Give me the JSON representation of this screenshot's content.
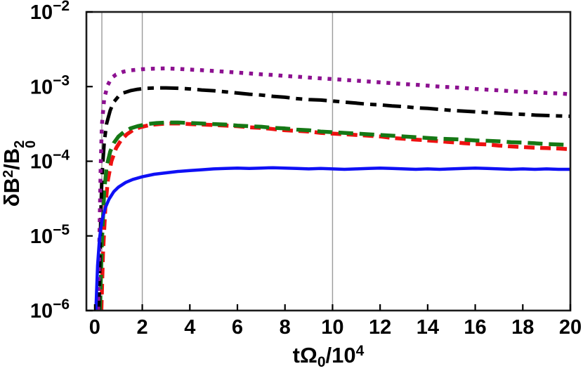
{
  "figure": {
    "background": "#ffffff",
    "axis_box_color": "#1c1c1c",
    "grid_color": "#9b9b9b",
    "tick_color": "#000000",
    "text_color": "#000000"
  },
  "labels": {
    "xlabel": {
      "main": "tΩ",
      "sub": "0",
      "mid": "/10",
      "sup": "4"
    },
    "ylabel": {
      "lead": "δB",
      "lead_sup": "2",
      "slash": "/",
      "base": "B",
      "stack_sup": "2",
      "stack_sub": "0"
    }
  },
  "chart_data": {
    "type": "line",
    "title": "",
    "xlabel": "tΩ0/10^4",
    "ylabel": "δB^2/B0^2",
    "x_axis_scale": "linear",
    "y_axis_scale": "log",
    "xlim": [
      -0.35,
      20
    ],
    "ylim": [
      1e-06,
      0.01
    ],
    "x_ticks": [
      0,
      2,
      4,
      6,
      8,
      10,
      12,
      14,
      16,
      18,
      20
    ],
    "y_ticks": [
      {
        "value": 0.01,
        "base": "10",
        "exp": "−2"
      },
      {
        "value": 0.001,
        "base": "10",
        "exp": "−3"
      },
      {
        "value": 0.0001,
        "base": "10",
        "exp": "−4"
      },
      {
        "value": 1e-05,
        "base": "10",
        "exp": "−5"
      },
      {
        "value": 1e-06,
        "base": "10",
        "exp": "−6"
      }
    ],
    "grid_x_values": [
      0.3,
      2,
      10
    ],
    "legend_position": "none",
    "series": [
      {
        "name": "red-dashed",
        "color": "#ee1111",
        "line_style": "dashed",
        "dash": "15 8",
        "stroke_width": 5.5,
        "points": [
          [
            0.28,
            1e-06
          ],
          [
            0.35,
            6e-06
          ],
          [
            0.45,
            2.5e-05
          ],
          [
            0.55,
            5.5e-05
          ],
          [
            0.7,
            0.0001
          ],
          [
            0.9,
            0.00015
          ],
          [
            1.1,
            0.00019
          ],
          [
            1.35,
            0.00023
          ],
          [
            1.6,
            0.00026
          ],
          [
            1.9,
            0.000285
          ],
          [
            2.3,
            0.000305
          ],
          [
            2.7,
            0.000315
          ],
          [
            3.1,
            0.00032
          ],
          [
            3.6,
            0.00032
          ],
          [
            4,
            0.000315
          ],
          [
            4.5,
            0.00031
          ],
          [
            5,
            0.000305
          ],
          [
            5.5,
            0.0003
          ],
          [
            6,
            0.000295
          ],
          [
            6.5,
            0.000285
          ],
          [
            7,
            0.00028
          ],
          [
            7.5,
            0.00027
          ],
          [
            8,
            0.00026
          ],
          [
            8.5,
            0.000255
          ],
          [
            9,
            0.00025
          ],
          [
            9.5,
            0.00024
          ],
          [
            10,
            0.000235
          ],
          [
            10.5,
            0.00023
          ],
          [
            11,
            0.000225
          ],
          [
            11.5,
            0.00022
          ],
          [
            12,
            0.000215
          ],
          [
            12.5,
            0.000205
          ],
          [
            13,
            0.0002
          ],
          [
            13.5,
            0.000195
          ],
          [
            14,
            0.00019
          ],
          [
            14.5,
            0.000185
          ],
          [
            15,
            0.00018
          ],
          [
            15.5,
            0.000175
          ],
          [
            16,
            0.00017
          ],
          [
            16.5,
            0.000168
          ],
          [
            17,
            0.000162
          ],
          [
            17.5,
            0.000158
          ],
          [
            18,
            0.000155
          ],
          [
            18.5,
            0.000152
          ],
          [
            19,
            0.00015
          ],
          [
            19.5,
            0.000148
          ],
          [
            20,
            0.000145
          ]
        ]
      },
      {
        "name": "green-long-dashed",
        "color": "#157815",
        "line_style": "long-dashed",
        "dash": "21 9",
        "stroke_width": 5.5,
        "points": [
          [
            0.22,
            1e-06
          ],
          [
            0.3,
            8e-06
          ],
          [
            0.4,
            4e-05
          ],
          [
            0.5,
            8.5e-05
          ],
          [
            0.65,
            0.000135
          ],
          [
            0.8,
            0.000175
          ],
          [
            1.0,
            0.000215
          ],
          [
            1.25,
            0.00025
          ],
          [
            1.5,
            0.000275
          ],
          [
            1.8,
            0.000295
          ],
          [
            2.2,
            0.000315
          ],
          [
            2.6,
            0.000325
          ],
          [
            3.0,
            0.00033
          ],
          [
            3.5,
            0.00033
          ],
          [
            4,
            0.000325
          ],
          [
            4.5,
            0.00032
          ],
          [
            5,
            0.000315
          ],
          [
            5.5,
            0.00031
          ],
          [
            6,
            0.0003
          ],
          [
            6.5,
            0.000295
          ],
          [
            7,
            0.00029
          ],
          [
            7.5,
            0.00028
          ],
          [
            8,
            0.000275
          ],
          [
            8.5,
            0.000265
          ],
          [
            9,
            0.00026
          ],
          [
            9.5,
            0.00025
          ],
          [
            10,
            0.000245
          ],
          [
            10.5,
            0.00024
          ],
          [
            11,
            0.000235
          ],
          [
            11.5,
            0.00023
          ],
          [
            12,
            0.000225
          ],
          [
            12.5,
            0.00022
          ],
          [
            13,
            0.000215
          ],
          [
            13.5,
            0.00021
          ],
          [
            14,
            0.000205
          ],
          [
            14.5,
            0.0002
          ],
          [
            15,
            0.000198
          ],
          [
            15.5,
            0.000195
          ],
          [
            16,
            0.00019
          ],
          [
            16.5,
            0.000188
          ],
          [
            17,
            0.000185
          ],
          [
            17.5,
            0.00018
          ],
          [
            18,
            0.000178
          ],
          [
            18.5,
            0.000174
          ],
          [
            19,
            0.00017
          ],
          [
            19.5,
            0.000168
          ],
          [
            20,
            0.000165
          ]
        ]
      },
      {
        "name": "black-dash-dot",
        "color": "#000000",
        "line_style": "dash-dot",
        "dash": "26 9 9 9",
        "stroke_width": 5,
        "points": [
          [
            0.18,
            1e-06
          ],
          [
            0.25,
            1.5e-05
          ],
          [
            0.3,
            6e-05
          ],
          [
            0.4,
            0.00018
          ],
          [
            0.5,
            0.00032
          ],
          [
            0.65,
            0.00048
          ],
          [
            0.8,
            0.00062
          ],
          [
            1.0,
            0.00074
          ],
          [
            1.2,
            0.00082
          ],
          [
            1.5,
            0.00088
          ],
          [
            1.8,
            0.00092
          ],
          [
            2.2,
            0.00095
          ],
          [
            2.6,
            0.00096
          ],
          [
            3.0,
            0.00096
          ],
          [
            3.5,
            0.00095
          ],
          [
            4,
            0.00093
          ],
          [
            4.5,
            0.0009
          ],
          [
            5,
            0.00088
          ],
          [
            5.5,
            0.00085
          ],
          [
            6,
            0.00082
          ],
          [
            6.5,
            0.00079
          ],
          [
            7,
            0.00077
          ],
          [
            7.5,
            0.00074
          ],
          [
            8,
            0.00072
          ],
          [
            8.5,
            0.00069
          ],
          [
            9,
            0.00067
          ],
          [
            9.5,
            0.00066
          ],
          [
            10,
            0.00064
          ],
          [
            10.5,
            0.00062
          ],
          [
            11,
            0.0006
          ],
          [
            11.5,
            0.00058
          ],
          [
            12,
            0.00057
          ],
          [
            12.5,
            0.00055
          ],
          [
            13,
            0.00054
          ],
          [
            13.5,
            0.00052
          ],
          [
            14,
            0.00051
          ],
          [
            14.5,
            0.000495
          ],
          [
            15,
            0.00048
          ],
          [
            15.5,
            0.00047
          ],
          [
            16,
            0.00046
          ],
          [
            16.5,
            0.00045
          ],
          [
            17,
            0.00044
          ],
          [
            17.5,
            0.00043
          ],
          [
            18,
            0.000425
          ],
          [
            18.5,
            0.000415
          ],
          [
            19,
            0.00041
          ],
          [
            19.5,
            0.000405
          ],
          [
            20,
            0.0004
          ]
        ]
      },
      {
        "name": "purple-dotted",
        "color": "#8c1090",
        "line_style": "dotted",
        "dash": "5.5 8.5",
        "stroke_width": 5.5,
        "points": [
          [
            0.15,
            1e-06
          ],
          [
            0.2,
            1e-05
          ],
          [
            0.25,
            8e-05
          ],
          [
            0.3,
            0.0003
          ],
          [
            0.4,
            0.0007
          ],
          [
            0.55,
            0.00105
          ],
          [
            0.7,
            0.0013
          ],
          [
            0.9,
            0.00145
          ],
          [
            1.2,
            0.00158
          ],
          [
            1.5,
            0.00165
          ],
          [
            2.0,
            0.00171
          ],
          [
            2.5,
            0.00174
          ],
          [
            3.0,
            0.00175
          ],
          [
            3.5,
            0.00173
          ],
          [
            4,
            0.00169
          ],
          [
            4.5,
            0.00166
          ],
          [
            5,
            0.00162
          ],
          [
            5.5,
            0.00158
          ],
          [
            6,
            0.00154
          ],
          [
            6.5,
            0.0015
          ],
          [
            7,
            0.00146
          ],
          [
            7.5,
            0.00143
          ],
          [
            8,
            0.00139
          ],
          [
            8.5,
            0.00136
          ],
          [
            9,
            0.00132
          ],
          [
            9.5,
            0.00129
          ],
          [
            10,
            0.00126
          ],
          [
            10.5,
            0.00123
          ],
          [
            11,
            0.0012
          ],
          [
            11.5,
            0.00117
          ],
          [
            12,
            0.00114
          ],
          [
            12.5,
            0.00111
          ],
          [
            13,
            0.00108
          ],
          [
            13.5,
            0.00106
          ],
          [
            14,
            0.00103
          ],
          [
            14.5,
            0.001
          ],
          [
            15,
            0.00098
          ],
          [
            15.5,
            0.00096
          ],
          [
            16,
            0.00093
          ],
          [
            16.5,
            0.00091
          ],
          [
            17,
            0.00089
          ],
          [
            17.5,
            0.00087
          ],
          [
            18,
            0.00085
          ],
          [
            18.5,
            0.00084
          ],
          [
            19,
            0.00082
          ],
          [
            19.5,
            0.00081
          ],
          [
            20,
            0.00079
          ]
        ]
      },
      {
        "name": "blue-solid",
        "color": "#0f10f5",
        "line_style": "solid",
        "dash": null,
        "stroke_width": 4.5,
        "points": [
          [
            0.05,
            1e-06
          ],
          [
            0.12,
            4e-06
          ],
          [
            0.2,
            9e-06
          ],
          [
            0.3,
            1.6e-05
          ],
          [
            0.45,
            2.4e-05
          ],
          [
            0.6,
            3.1e-05
          ],
          [
            0.8,
            3.9e-05
          ],
          [
            1.0,
            4.5e-05
          ],
          [
            1.3,
            5.2e-05
          ],
          [
            1.6,
            5.7e-05
          ],
          [
            2.0,
            6.2e-05
          ],
          [
            2.5,
            6.7e-05
          ],
          [
            3.0,
            7e-05
          ],
          [
            3.5,
            7.3e-05
          ],
          [
            4.0,
            7.5e-05
          ],
          [
            4.5,
            7.7e-05
          ],
          [
            5.0,
            7.9e-05
          ],
          [
            5.5,
            8e-05
          ],
          [
            6.0,
            8.1e-05
          ],
          [
            6.5,
            8e-05
          ],
          [
            7.0,
            8.1e-05
          ],
          [
            7.5,
            8.2e-05
          ],
          [
            8.0,
            8.1e-05
          ],
          [
            8.5,
            8e-05
          ],
          [
            9.0,
            7.9e-05
          ],
          [
            9.5,
            8e-05
          ],
          [
            10.0,
            7.9e-05
          ],
          [
            10.5,
            7.8e-05
          ],
          [
            11.0,
            7.9e-05
          ],
          [
            11.5,
            8e-05
          ],
          [
            12.0,
            8.1e-05
          ],
          [
            12.5,
            8e-05
          ],
          [
            13.0,
            7.9e-05
          ],
          [
            13.5,
            7.8e-05
          ],
          [
            14.0,
            7.9e-05
          ],
          [
            14.5,
            7.8e-05
          ],
          [
            15.0,
            7.9e-05
          ],
          [
            15.5,
            8e-05
          ],
          [
            16.0,
            8.1e-05
          ],
          [
            16.5,
            8e-05
          ],
          [
            17.0,
            7.9e-05
          ],
          [
            17.5,
            7.8e-05
          ],
          [
            18.0,
            7.9e-05
          ],
          [
            18.5,
            7.8e-05
          ],
          [
            19.0,
            7.9e-05
          ],
          [
            19.5,
            7.8e-05
          ],
          [
            20.0,
            7.8e-05
          ]
        ]
      }
    ]
  }
}
